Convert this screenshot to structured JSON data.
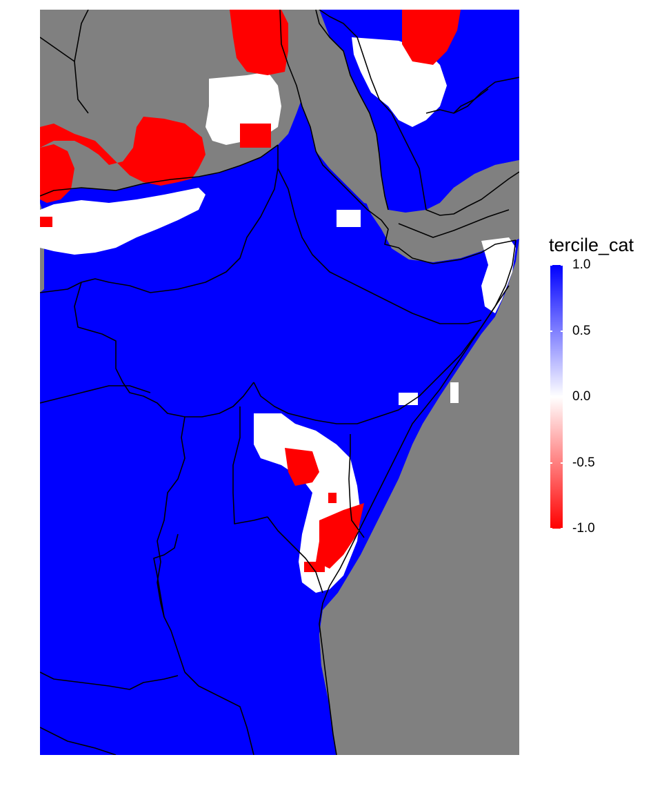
{
  "chart_data": {
    "type": "heatmap",
    "title": "",
    "xlabel": "",
    "ylabel": "",
    "background_color": "#808080",
    "color_scale": {
      "min": -1.0,
      "mid": 0.0,
      "max": 1.0,
      "low_color": "#ff0000",
      "mid_color": "#ffffff",
      "high_color": "#0000ff"
    },
    "values_present": [
      -1,
      0,
      1
    ],
    "legend": {
      "title": "tercile_cat",
      "placement": "right",
      "ticks": [
        1.0,
        0.5,
        0.0,
        -0.5,
        -1.0
      ],
      "tick_labels": [
        "1.0",
        "0.5",
        "0.0",
        "-0.5",
        "-1.0"
      ]
    },
    "grid": false
  }
}
